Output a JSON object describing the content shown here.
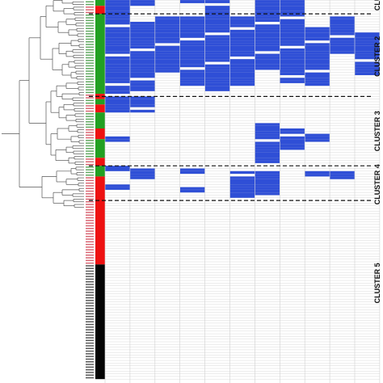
{
  "heatmap": {
    "colors": {
      "filled": "#2f4fd6",
      "empty": "#ffffff",
      "grid_line": "#d0d0d0",
      "divider": "#111111",
      "dendrogram": "#555555",
      "group_green": "#22a022",
      "group_red": "#ee1111",
      "group_black": "#050505",
      "label_green": "#2e8b2e",
      "label_red": "#cc3344",
      "label_black": "#222222"
    },
    "columns": 11,
    "visible_rows": 144,
    "group_strip": [
      {
        "group": "green",
        "rows": 4
      },
      {
        "group": "red",
        "rows": 3
      },
      {
        "group": "green",
        "rows": 30
      },
      {
        "group": "red",
        "rows": 2
      },
      {
        "group": "green",
        "rows": 2
      },
      {
        "group": "red",
        "rows": 3
      },
      {
        "group": "green",
        "rows": 6
      },
      {
        "group": "red",
        "rows": 4
      },
      {
        "group": "green",
        "rows": 7
      },
      {
        "group": "red",
        "rows": 3
      },
      {
        "group": "green",
        "rows": 4
      },
      {
        "group": "red",
        "rows": 33
      },
      {
        "group": "black",
        "rows": 43
      }
    ],
    "filled_cells": [
      {
        "col": 0,
        "rows": [
          0,
          37
        ]
      },
      {
        "col": 1,
        "rows": [
          0,
          4
        ]
      },
      {
        "col": 1,
        "rows": [
          10,
          36
        ]
      },
      {
        "col": 2,
        "rows": [
          8,
          30
        ]
      },
      {
        "col": 3,
        "rows": [
          0,
          3
        ]
      },
      {
        "col": 3,
        "rows": [
          8,
          34
        ]
      },
      {
        "col": 4,
        "rows": [
          0,
          36
        ]
      },
      {
        "col": 5,
        "rows": [
          8,
          35
        ]
      },
      {
        "col": 6,
        "rows": [
          0,
          28
        ]
      },
      {
        "col": 7,
        "rows": [
          0,
          33
        ]
      },
      {
        "col": 8,
        "rows": [
          12,
          34
        ]
      },
      {
        "col": 9,
        "rows": [
          8,
          22
        ]
      },
      {
        "col": 10,
        "rows": [
          14,
          30
        ]
      },
      {
        "col": 0,
        "rows": [
          38,
          44
        ]
      },
      {
        "col": 1,
        "rows": [
          38,
          44
        ]
      },
      {
        "col": 6,
        "rows": [
          48,
          63
        ]
      },
      {
        "col": 7,
        "rows": [
          50,
          58
        ]
      },
      {
        "col": 8,
        "rows": [
          52,
          55
        ]
      },
      {
        "col": 0,
        "rows": [
          53,
          56
        ]
      },
      {
        "col": 0,
        "rows": [
          64,
          67
        ]
      },
      {
        "col": 1,
        "rows": [
          65,
          69
        ]
      },
      {
        "col": 3,
        "rows": [
          65,
          67
        ]
      },
      {
        "col": 5,
        "rows": [
          66,
          76
        ]
      },
      {
        "col": 6,
        "rows": [
          66,
          75
        ]
      },
      {
        "col": 8,
        "rows": [
          66,
          68
        ]
      },
      {
        "col": 9,
        "rows": [
          66,
          69
        ]
      },
      {
        "col": 0,
        "rows": [
          71,
          73
        ]
      },
      {
        "col": 3,
        "rows": [
          72,
          74
        ]
      }
    ],
    "cluster_dividers_after_row": [
      7,
      38,
      64,
      77
    ],
    "cluster_labels": [
      {
        "text": "CLU",
        "row_center": 3
      },
      {
        "text": "CLUSTER 2",
        "row_center": 23
      },
      {
        "text": "CLUSTER 3",
        "row_center": 51
      },
      {
        "text": "CLUSTER 4",
        "row_center": 71
      },
      {
        "text": "CLUSTER 5",
        "row_center": 108
      }
    ]
  }
}
